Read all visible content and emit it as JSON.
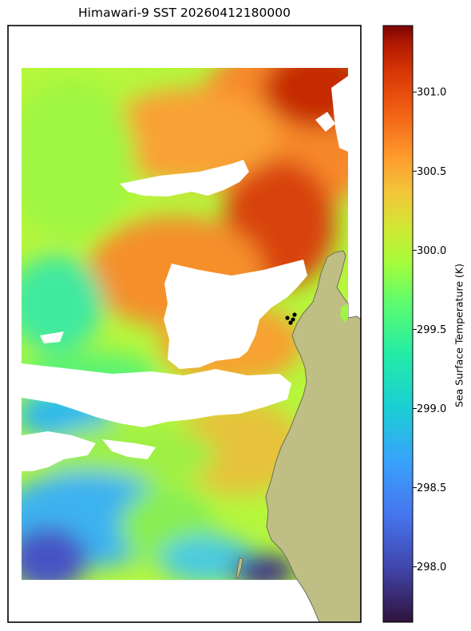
{
  "title": "Himawari-9 SST 20260412180000",
  "colorbar": {
    "label": "Sea Surface Temperature (K)",
    "range": [
      297.65,
      301.42
    ],
    "ticks": [
      "298.0",
      "298.5",
      "299.0",
      "299.5",
      "300.0",
      "300.5",
      "301.0"
    ],
    "colormap": "turbo"
  },
  "colors": {
    "land": "#bfbf85",
    "coast": "#6e6e58",
    "missing": "#ffffff",
    "station": "#000000"
  },
  "chart_data": {
    "type": "heatmap",
    "title": "Himawari-9 SST 20260412180000",
    "value_label": "Sea Surface Temperature (K)",
    "colorbar_ticks": [
      298.0,
      298.5,
      299.0,
      299.5,
      300.0,
      300.5,
      301.0
    ],
    "value_range": [
      297.65,
      301.42
    ],
    "regions": [
      {
        "area": "north-east offshore",
        "value_approx": 301.0
      },
      {
        "area": "central offshore",
        "value_approx": 300.4
      },
      {
        "area": "north-west",
        "value_approx": 299.7
      },
      {
        "area": "west-central",
        "value_approx": 299.1
      },
      {
        "area": "south-central",
        "value_approx": 299.6
      },
      {
        "area": "south-west corner",
        "value_approx": 298.2
      },
      {
        "area": "south-east near coast",
        "value_approx": 297.9
      }
    ],
    "station_count": 4
  }
}
